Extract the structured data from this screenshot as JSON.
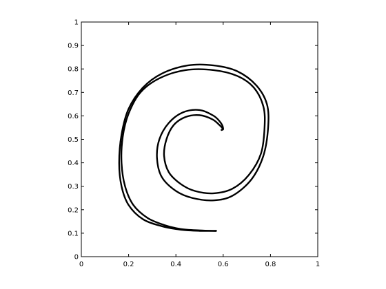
{
  "chart_data": {
    "type": "line",
    "title": "",
    "xlabel": "",
    "ylabel": "",
    "xlim": [
      0,
      1
    ],
    "ylim": [
      0,
      1
    ],
    "grid": false,
    "x_ticks": [
      "0",
      "0.2",
      "0.4",
      "0.6",
      "0.8",
      "1"
    ],
    "y_ticks": [
      "0",
      "0.1",
      "0.2",
      "0.3",
      "0.4",
      "0.5",
      "0.6",
      "0.7",
      "0.8",
      "0.9",
      "1"
    ],
    "line_color": "#000000",
    "series": [
      {
        "x": [
          0.57,
          0.5,
          0.42,
          0.34,
          0.26,
          0.2,
          0.17,
          0.16,
          0.17,
          0.2,
          0.26,
          0.34,
          0.45,
          0.56,
          0.66,
          0.74,
          0.785,
          0.79,
          0.77,
          0.72,
          0.64,
          0.56,
          0.47,
          0.4,
          0.34,
          0.32,
          0.33,
          0.37,
          0.43,
          0.5,
          0.56,
          0.59,
          0.6,
          0.593
        ],
        "y": [
          0.11,
          0.11,
          0.115,
          0.13,
          0.16,
          0.22,
          0.3,
          0.4,
          0.52,
          0.63,
          0.72,
          0.78,
          0.815,
          0.815,
          0.79,
          0.73,
          0.65,
          0.55,
          0.43,
          0.33,
          0.26,
          0.24,
          0.25,
          0.28,
          0.34,
          0.42,
          0.5,
          0.57,
          0.615,
          0.625,
          0.6,
          0.57,
          0.545,
          0.54
        ]
      },
      {
        "x": [
          0.57,
          0.5,
          0.42,
          0.35,
          0.28,
          0.22,
          0.185,
          0.17,
          0.175,
          0.2,
          0.25,
          0.33,
          0.44,
          0.56,
          0.66,
          0.73,
          0.77,
          0.775,
          0.76,
          0.71,
          0.64,
          0.56,
          0.48,
          0.42,
          0.37,
          0.35,
          0.36,
          0.39,
          0.44,
          0.5,
          0.555,
          0.585,
          0.598,
          0.593
        ],
        "y": [
          0.11,
          0.112,
          0.118,
          0.135,
          0.165,
          0.22,
          0.3,
          0.4,
          0.51,
          0.61,
          0.7,
          0.76,
          0.795,
          0.795,
          0.77,
          0.72,
          0.64,
          0.55,
          0.44,
          0.35,
          0.29,
          0.27,
          0.28,
          0.31,
          0.36,
          0.43,
          0.5,
          0.56,
          0.595,
          0.603,
          0.585,
          0.56,
          0.545,
          0.54
        ]
      }
    ]
  }
}
